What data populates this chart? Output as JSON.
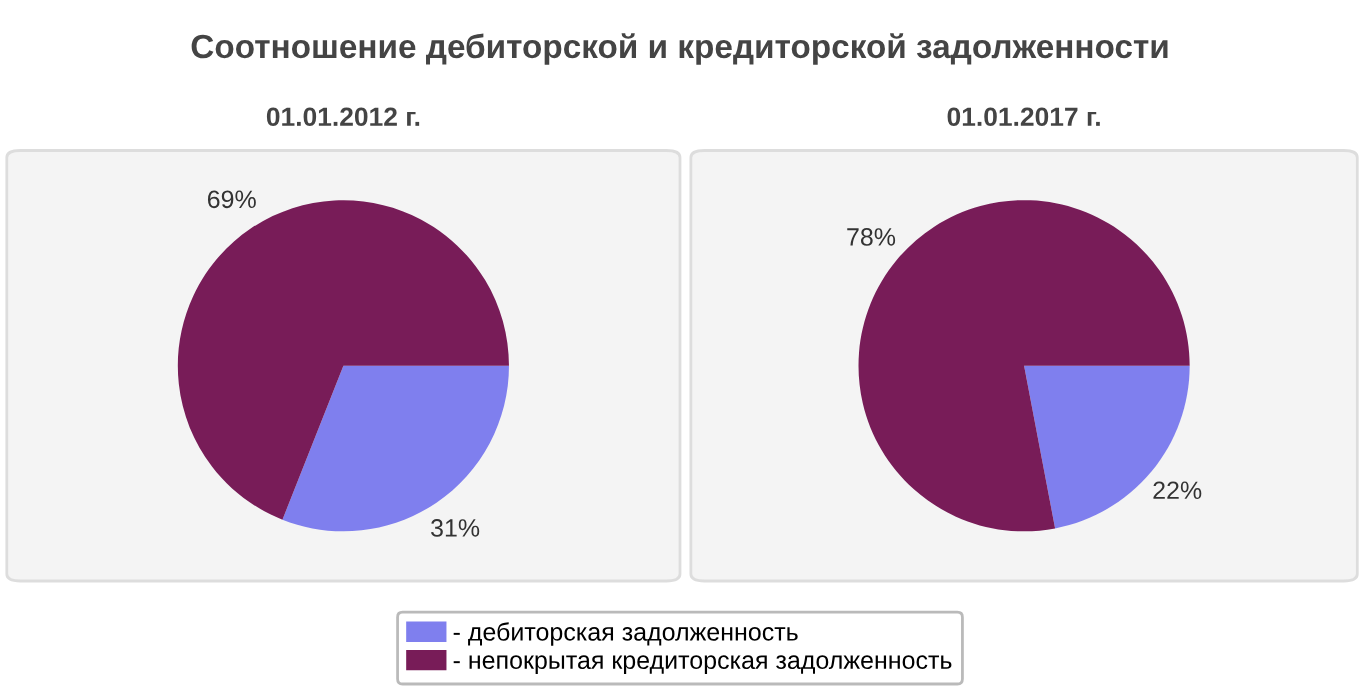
{
  "chart_data": [
    {
      "type": "pie",
      "title": "Соотношение дебиторской и кредиторской задолженности",
      "subtitle": "01.01.2012 г.",
      "categories": [
        "- дебиторская задолженность",
        "- непокрытая кредиторская задолженность"
      ],
      "values": [
        31,
        69
      ],
      "value_labels": [
        "31%",
        "69%"
      ],
      "colors": [
        "#7f7fee",
        "#781c58"
      ],
      "legend": "bottom"
    },
    {
      "type": "pie",
      "subtitle": "01.01.2017 г.",
      "categories": [
        null,
        null
      ],
      "values": [
        22,
        78
      ],
      "value_labels": [
        "22%",
        "78%"
      ],
      "colors": [
        "#7f7fee",
        "#781c58"
      ]
    }
  ]
}
